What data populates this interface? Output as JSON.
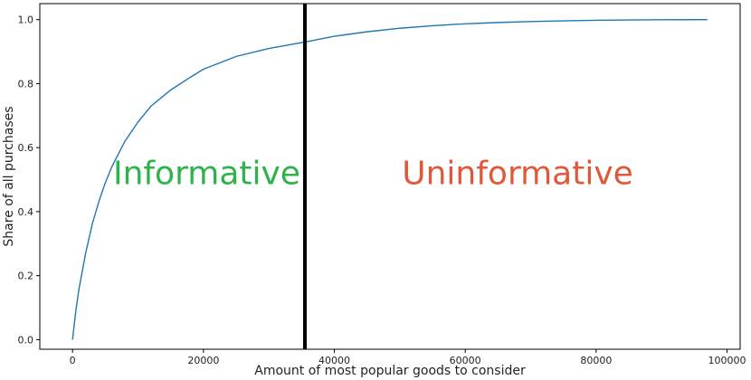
{
  "chart_data": {
    "type": "line",
    "xlabel": "Amount of most popular goods to consider",
    "ylabel": "Share of all purchases",
    "xlim": [
      -5000,
      102000
    ],
    "ylim": [
      -0.03,
      1.05
    ],
    "xticks": [
      0,
      20000,
      40000,
      60000,
      80000,
      100000
    ],
    "xtick_labels": [
      "0",
      "20000",
      "40000",
      "60000",
      "80000",
      "100000"
    ],
    "yticks": [
      0.0,
      0.2,
      0.4,
      0.6,
      0.8,
      1.0
    ],
    "ytick_labels": [
      "0.0",
      "0.2",
      "0.4",
      "0.6",
      "0.8",
      "1.0"
    ],
    "grid": false,
    "series": [
      {
        "color": "#1f77b4",
        "x": [
          0,
          500,
          1000,
          2000,
          3000,
          4000,
          5000,
          6000,
          8000,
          10000,
          12000,
          15000,
          18000,
          20000,
          25000,
          30000,
          35500,
          40000,
          45000,
          50000,
          55000,
          60000,
          65000,
          70000,
          75000,
          80000,
          85000,
          90000,
          97000
        ],
        "y": [
          0.0,
          0.09,
          0.16,
          0.27,
          0.36,
          0.43,
          0.49,
          0.54,
          0.62,
          0.68,
          0.73,
          0.78,
          0.82,
          0.845,
          0.885,
          0.91,
          0.93,
          0.948,
          0.962,
          0.973,
          0.981,
          0.987,
          0.991,
          0.994,
          0.996,
          0.998,
          0.999,
          0.9995,
          1.0
        ]
      }
    ],
    "threshold": {
      "x": 35500,
      "color": "#000000"
    },
    "annotations": [
      {
        "text": "Informative",
        "x": 20500,
        "y": 0.52,
        "color": "#2db34a"
      },
      {
        "text": "Uninformative",
        "x": 68000,
        "y": 0.52,
        "color": "#e0573a"
      }
    ]
  }
}
